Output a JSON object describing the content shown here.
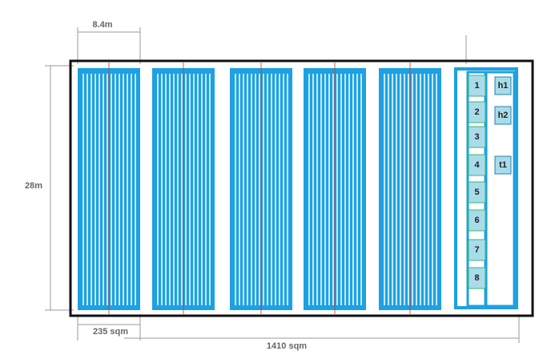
{
  "dimensions": {
    "bay_width": "8.4m",
    "height": "28m",
    "bay_area": "235 sqm",
    "total_area": "1410 sqm"
  },
  "units": [
    {
      "label": "1"
    },
    {
      "label": "2"
    },
    {
      "label": "3"
    },
    {
      "label": "4"
    },
    {
      "label": "5"
    },
    {
      "label": "6"
    },
    {
      "label": "7"
    },
    {
      "label": "8"
    }
  ],
  "equipment": [
    {
      "label": "h1"
    },
    {
      "label": "h2"
    },
    {
      "label": "t1"
    }
  ]
}
